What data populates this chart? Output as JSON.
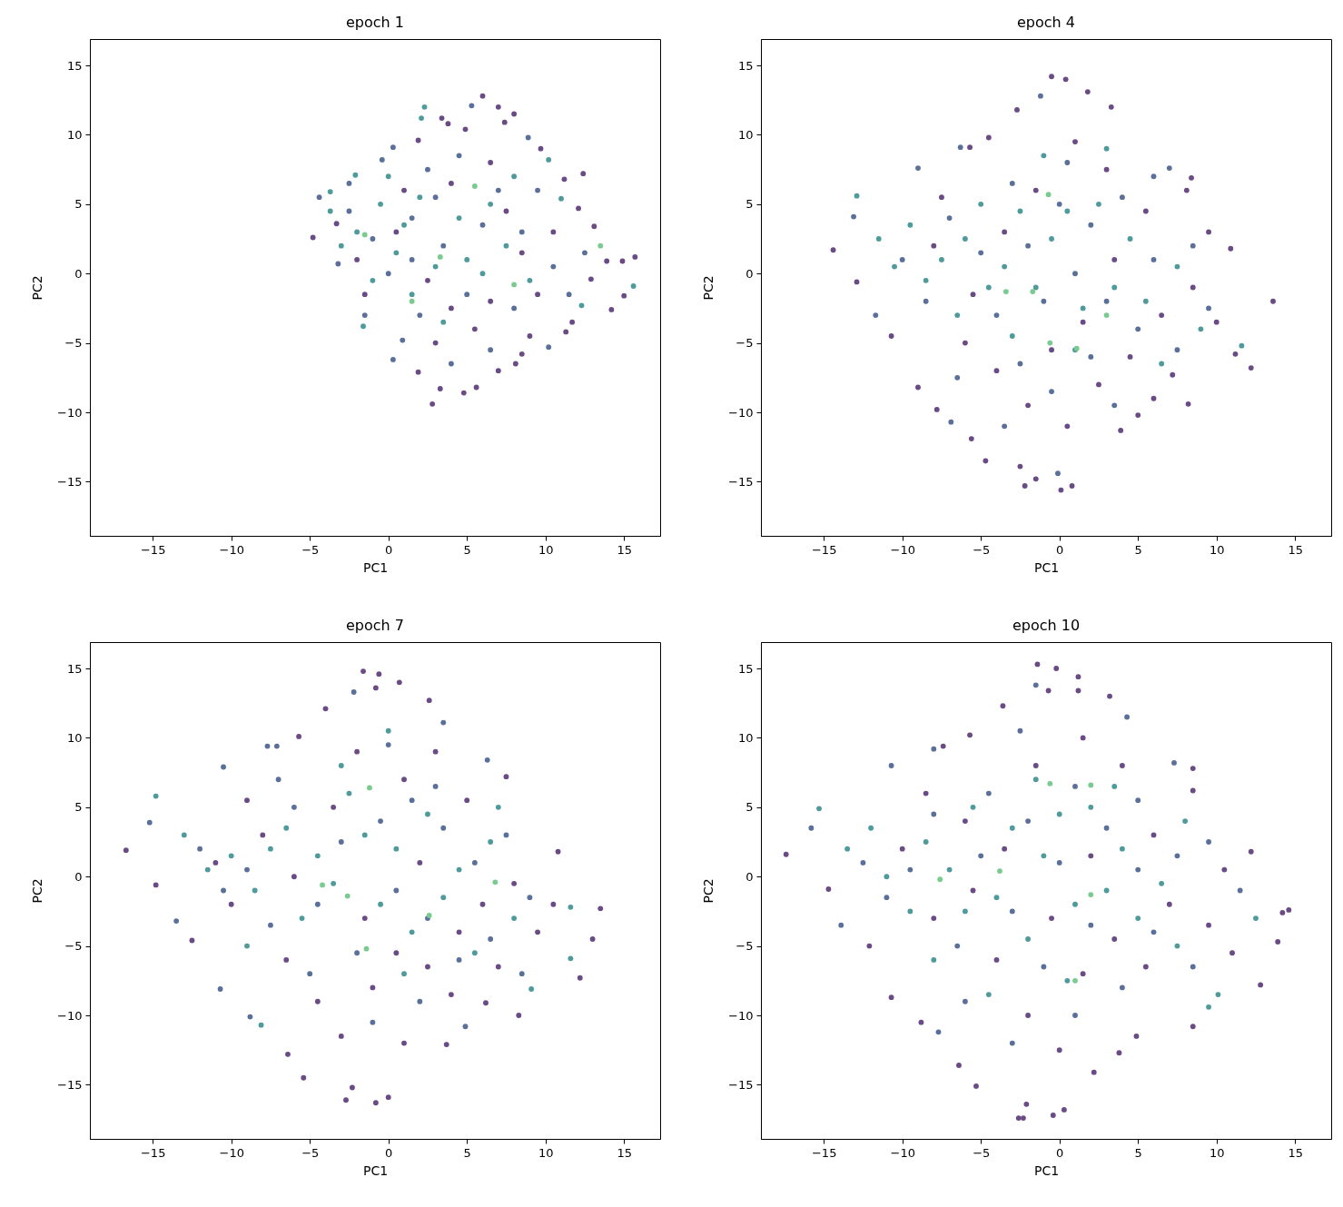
{
  "chart_data": [
    {
      "type": "scatter",
      "title": "epoch 1",
      "xlabel": "PC1",
      "ylabel": "PC2",
      "marker": "circle",
      "xlim": [
        -19.0,
        17.3
      ],
      "ylim": [
        -18.9,
        16.9
      ],
      "xticks": [
        -15,
        -10,
        -5,
        0,
        5,
        10,
        15
      ],
      "yticks": [
        -15,
        -10,
        -5,
        0,
        5,
        10,
        15
      ],
      "series": [
        {
          "color": "#6a4b86",
          "x": [
            -4.8,
            6.0,
            7.0,
            8.0,
            3.4,
            3.8,
            4.9,
            7.4,
            9.7,
            11.2,
            12.1,
            13.1,
            13.9,
            15.7,
            14.9,
            15.0,
            14.2,
            12.9,
            11.7,
            11.3,
            8.5,
            8.1,
            5.6,
            4.8,
            3.3,
            2.8,
            1.9,
            -3.3,
            1.9,
            12.4,
            -1.5,
            0.5,
            2.5,
            4.0,
            6.5,
            7.5,
            8.5,
            9.5,
            5.5,
            3.0,
            6.5,
            1.0,
            -2.0,
            10.5,
            4.0,
            7.0,
            9.0
          ],
          "values": [
            2.6,
            12.8,
            12.0,
            11.5,
            11.2,
            10.8,
            10.4,
            10.9,
            9.0,
            6.8,
            4.7,
            3.4,
            0.9,
            1.2,
            0.9,
            -1.6,
            -2.6,
            -0.4,
            -3.5,
            -4.2,
            -5.8,
            -6.5,
            -8.2,
            -8.6,
            -8.3,
            -9.4,
            -7.1,
            3.6,
            9.6,
            7.2,
            -1.5,
            3.0,
            -0.5,
            6.5,
            -2.0,
            4.5,
            1.5,
            -1.5,
            -4.0,
            -5.0,
            8.0,
            6.0,
            1.0,
            3.0,
            -2.5,
            -7.0,
            -4.5
          ]
        },
        {
          "color": "#5b6f9b",
          "x": [
            5.3,
            -4.4,
            8.9,
            0.3,
            10.2,
            0.9,
            -3.2,
            -0.4,
            0.3,
            -2.5,
            -1.0,
            0.0,
            1.5,
            2.5,
            3.5,
            4.5,
            5.0,
            6.0,
            7.0,
            8.0,
            8.5,
            9.5,
            10.5,
            11.5,
            2.0,
            -1.5,
            3.0,
            1.5,
            6.5,
            4.0,
            -2.5,
            12.5
          ],
          "values": [
            12.1,
            5.5,
            9.8,
            -6.2,
            -5.3,
            -4.8,
            0.7,
            8.2,
            9.1,
            4.5,
            2.5,
            0.0,
            4.0,
            7.5,
            2.0,
            8.5,
            -1.5,
            3.5,
            6.0,
            -2.5,
            3.0,
            6.0,
            0.5,
            -1.5,
            -3.0,
            -3.0,
            5.5,
            1.0,
            -5.5,
            -6.5,
            6.5,
            1.5
          ]
        },
        {
          "color": "#4f9a9b",
          "x": [
            2.3,
            2.1,
            -3.7,
            -3.7,
            -2.1,
            -1.6,
            10.2,
            11.0,
            12.3,
            15.6,
            -2.0,
            -0.5,
            0.5,
            1.0,
            2.0,
            3.0,
            -1.0,
            1.5,
            4.5,
            6.0,
            7.5,
            8.0,
            9.0,
            6.5,
            3.5,
            0.0,
            -3.0,
            5.0
          ],
          "values": [
            12.0,
            11.2,
            4.5,
            5.9,
            7.1,
            -3.8,
            8.2,
            5.4,
            -2.3,
            -0.9,
            3.0,
            5.0,
            1.5,
            3.5,
            5.5,
            0.5,
            -0.5,
            -1.5,
            4.0,
            0.0,
            2.0,
            7.0,
            -0.5,
            5.0,
            -3.5,
            7.0,
            2.0,
            1.0
          ]
        },
        {
          "color": "#7acb8f",
          "x": [
            13.5,
            5.5,
            3.3,
            8.0,
            -1.5,
            1.5
          ],
          "values": [
            2.0,
            6.3,
            1.2,
            -0.8,
            2.8,
            -2.0
          ]
        }
      ]
    },
    {
      "type": "scatter",
      "title": "epoch 4",
      "xlabel": "PC1",
      "ylabel": "PC2",
      "marker": "circle",
      "xlim": [
        -19.0,
        17.3
      ],
      "ylim": [
        -18.9,
        16.9
      ],
      "xticks": [
        -15,
        -10,
        -5,
        0,
        5,
        10,
        15
      ],
      "yticks": [
        -15,
        -10,
        -5,
        0,
        5,
        10,
        15
      ],
      "series": [
        {
          "color": "#6a4b86",
          "x": [
            -14.4,
            -12.9,
            -0.5,
            0.4,
            1.8,
            -2.7,
            3.3,
            8.4,
            10.9,
            13.6,
            12.2,
            11.2,
            0.1,
            0.8,
            -2.2,
            -1.5,
            -2.5,
            -4.7,
            -5.6,
            3.9,
            5.0,
            8.2,
            7.2,
            -7.8,
            -9.0,
            -10.7,
            -5.7,
            -4.5,
            8.1,
            -8.0,
            -6.0,
            -4.0,
            -2.0,
            0.5,
            2.5,
            4.5,
            6.5,
            8.5,
            9.5,
            5.5,
            3.0,
            1.0,
            -1.5,
            -3.5,
            -5.5,
            1.5,
            -0.5,
            3.5,
            -7.5,
            6.0,
            10.0
          ],
          "values": [
            1.7,
            -0.6,
            14.2,
            14.0,
            13.1,
            11.8,
            12.0,
            6.9,
            1.8,
            -2.0,
            -6.8,
            -5.8,
            -15.6,
            -15.3,
            -15.3,
            -14.8,
            -13.9,
            -13.5,
            -11.9,
            -11.3,
            -10.2,
            -9.4,
            -7.3,
            -9.8,
            -8.2,
            -4.5,
            9.1,
            9.8,
            6.0,
            2.0,
            -5.0,
            -7.0,
            -9.5,
            -11.0,
            -8.0,
            -6.0,
            -3.0,
            -1.0,
            3.0,
            4.5,
            7.5,
            9.5,
            6.0,
            3.0,
            -1.5,
            -3.5,
            -5.5,
            1.0,
            5.5,
            -9.0,
            -3.5
          ]
        },
        {
          "color": "#5b6f9b",
          "x": [
            -13.1,
            -1.2,
            7.0,
            -0.1,
            -6.9,
            -11.7,
            -9.0,
            -6.3,
            -10.0,
            -8.5,
            -7.0,
            -5.0,
            -4.0,
            -3.0,
            -2.0,
            -1.0,
            0.0,
            1.0,
            2.0,
            3.0,
            4.0,
            5.0,
            6.0,
            7.5,
            8.5,
            9.5,
            2.0,
            -2.5,
            -6.5,
            0.5,
            3.5,
            -3.5,
            6.0,
            -0.5
          ],
          "values": [
            4.1,
            12.8,
            7.6,
            -14.4,
            -10.7,
            -3.0,
            7.6,
            9.1,
            1.0,
            -2.0,
            4.0,
            1.5,
            -3.0,
            6.5,
            2.0,
            -2.0,
            5.0,
            0.0,
            3.5,
            -2.0,
            5.5,
            -4.0,
            1.0,
            -5.5,
            2.0,
            -2.5,
            -6.0,
            -6.5,
            -7.5,
            8.0,
            -9.5,
            -11.0,
            7.0,
            -8.5
          ]
        },
        {
          "color": "#4f9a9b",
          "x": [
            -12.9,
            11.6,
            -11.5,
            -10.5,
            -9.5,
            -8.5,
            -7.5,
            -6.5,
            -6.0,
            -5.0,
            -4.5,
            -3.5,
            -2.5,
            -1.5,
            -0.5,
            0.5,
            1.5,
            2.5,
            3.5,
            4.5,
            5.5,
            -3.0,
            1.0,
            7.5,
            9.0,
            6.5,
            -1.0,
            3.0
          ],
          "values": [
            5.6,
            -5.2,
            2.5,
            0.5,
            3.5,
            -0.5,
            1.0,
            -3.0,
            2.5,
            5.0,
            -1.0,
            0.5,
            4.5,
            -1.0,
            2.5,
            4.5,
            -2.5,
            5.0,
            -1.0,
            2.5,
            -2.0,
            -4.5,
            -5.5,
            0.5,
            -4.0,
            -6.5,
            8.5,
            9.0
          ]
        },
        {
          "color": "#7acb8f",
          "x": [
            -0.7,
            -3.4,
            -1.7,
            1.1,
            -0.6,
            3.0
          ],
          "values": [
            5.7,
            -1.3,
            -1.3,
            -5.4,
            -5.0,
            -3.0
          ]
        }
      ]
    },
    {
      "type": "scatter",
      "title": "epoch 7",
      "xlabel": "PC1",
      "ylabel": "PC2",
      "marker": "circle",
      "xlim": [
        -19.0,
        17.3
      ],
      "ylim": [
        -18.9,
        16.9
      ],
      "xticks": [
        -15,
        -10,
        -5,
        0,
        5,
        10,
        15
      ],
      "yticks": [
        -15,
        -10,
        -5,
        0,
        5,
        10,
        15
      ],
      "series": [
        {
          "color": "#6a4b86",
          "x": [
            -16.7,
            -14.8,
            -1.6,
            -0.6,
            0.7,
            -0.8,
            2.6,
            -4.0,
            7.5,
            10.8,
            13.5,
            13.0,
            12.2,
            -0.8,
            0.0,
            -2.7,
            -2.3,
            -5.4,
            -6.4,
            -12.5,
            -5.7,
            3.7,
            8.3,
            6.2,
            -10.0,
            -8.0,
            -6.5,
            -4.5,
            -3.0,
            -1.0,
            1.0,
            2.5,
            4.5,
            6.0,
            8.0,
            9.5,
            5.0,
            3.0,
            1.0,
            -2.0,
            -3.5,
            -6.0,
            -1.5,
            0.5,
            2.0,
            7.0,
            -9.0,
            4.0,
            10.5,
            -11.0
          ],
          "values": [
            1.9,
            -0.6,
            14.8,
            14.6,
            14.0,
            13.6,
            12.7,
            12.1,
            7.2,
            1.8,
            -2.3,
            -4.5,
            -7.3,
            -16.3,
            -15.9,
            -16.1,
            -15.2,
            -14.5,
            -12.8,
            -4.6,
            10.1,
            -12.1,
            -10.0,
            -9.1,
            -2.0,
            3.0,
            -6.0,
            -9.0,
            -11.5,
            -8.0,
            -12.0,
            -6.5,
            -4.0,
            -2.0,
            -0.5,
            -4.0,
            5.5,
            9.0,
            7.0,
            9.0,
            5.0,
            0.0,
            -3.0,
            -5.5,
            1.0,
            -6.5,
            5.5,
            -8.5,
            -2.0,
            1.0
          ]
        },
        {
          "color": "#5b6f9b",
          "x": [
            -15.2,
            -2.2,
            3.5,
            6.3,
            -8.8,
            -10.7,
            -13.5,
            -10.5,
            -7.7,
            -7.1,
            4.9,
            -12.0,
            -10.5,
            -9.0,
            -7.5,
            -6.0,
            -4.5,
            -3.0,
            -2.0,
            -0.5,
            0.5,
            1.5,
            2.5,
            3.5,
            4.5,
            5.5,
            6.5,
            7.5,
            9.0,
            0.0,
            -5.0,
            -1.0,
            2.0,
            -7.0,
            8.5,
            3.0
          ],
          "values": [
            3.9,
            13.3,
            11.1,
            8.4,
            -10.1,
            -8.1,
            -3.2,
            7.9,
            9.4,
            9.4,
            -10.8,
            2.0,
            -1.0,
            0.5,
            -3.5,
            5.0,
            -2.0,
            2.5,
            -5.5,
            4.0,
            -1.0,
            5.5,
            -3.0,
            3.5,
            -6.0,
            1.0,
            -4.5,
            3.0,
            -1.5,
            9.5,
            -7.0,
            -10.5,
            -9.0,
            7.0,
            -7.0,
            6.5
          ]
        },
        {
          "color": "#4f9a9b",
          "x": [
            -14.8,
            11.6,
            11.6,
            -8.1,
            9.1,
            -13.0,
            -11.5,
            -10.0,
            -8.5,
            -7.5,
            -6.5,
            -5.5,
            -4.5,
            -3.5,
            -2.5,
            -1.5,
            -0.5,
            0.5,
            1.5,
            2.5,
            3.5,
            4.5,
            5.5,
            -3.0,
            1.0,
            6.5,
            8.0,
            -9.0,
            7.0,
            0.0
          ],
          "values": [
            5.8,
            -5.9,
            -2.2,
            -10.7,
            -8.1,
            3.0,
            0.5,
            1.5,
            -1.0,
            2.0,
            3.5,
            -3.0,
            1.5,
            -0.5,
            6.0,
            3.0,
            -2.0,
            2.0,
            -4.0,
            4.5,
            -1.5,
            0.5,
            -5.5,
            8.0,
            -7.0,
            2.5,
            -3.0,
            -5.0,
            5.0,
            10.5
          ]
        },
        {
          "color": "#7acb8f",
          "x": [
            -1.2,
            -4.2,
            6.8,
            2.6,
            -1.4,
            -2.6
          ],
          "values": [
            6.4,
            -0.6,
            -0.4,
            -2.8,
            -5.2,
            -1.4
          ]
        }
      ]
    },
    {
      "type": "scatter",
      "title": "epoch 10",
      "xlabel": "PC1",
      "ylabel": "PC2",
      "marker": "circle",
      "xlim": [
        -19.0,
        17.3
      ],
      "ylim": [
        -18.9,
        16.9
      ],
      "xticks": [
        -15,
        -10,
        -5,
        0,
        5,
        10,
        15
      ],
      "yticks": [
        -15,
        -10,
        -5,
        0,
        5,
        10,
        15
      ],
      "series": [
        {
          "color": "#6a4b86",
          "x": [
            -17.4,
            -14.7,
            -1.4,
            -0.2,
            1.2,
            -0.7,
            1.2,
            3.2,
            -3.6,
            8.5,
            8.5,
            12.2,
            14.6,
            14.2,
            13.9,
            12.8,
            8.5,
            0.3,
            -0.4,
            -2.6,
            -2.3,
            -2.1,
            -5.3,
            -6.4,
            -8.8,
            -10.7,
            -12.1,
            -7.4,
            -5.7,
            4.9,
            3.8,
            2.2,
            -10.0,
            -8.0,
            -6.0,
            -4.0,
            -2.0,
            0.0,
            1.5,
            3.5,
            5.5,
            7.0,
            9.5,
            10.5,
            6.0,
            4.0,
            1.5,
            -1.5,
            -3.5,
            -5.5,
            -0.5,
            2.0,
            -8.5,
            11.0
          ],
          "values": [
            1.6,
            -0.9,
            15.3,
            15.0,
            14.4,
            13.4,
            13.4,
            13.0,
            12.3,
            7.8,
            6.2,
            1.8,
            -2.4,
            -2.6,
            -4.7,
            -7.8,
            -10.8,
            -16.8,
            -17.2,
            -17.4,
            -17.4,
            -16.4,
            -15.1,
            -13.6,
            -10.5,
            -8.7,
            -5.0,
            9.4,
            10.2,
            -11.5,
            -12.7,
            -14.1,
            2.0,
            -3.0,
            4.0,
            -6.0,
            -10.0,
            -12.5,
            -7.0,
            -4.5,
            -6.5,
            -2.0,
            -3.5,
            0.5,
            3.0,
            8.0,
            10.0,
            8.0,
            2.0,
            -1.0,
            -3.0,
            1.5,
            6.0,
            -5.5
          ]
        },
        {
          "color": "#5b6f9b",
          "x": [
            -15.8,
            -1.5,
            4.3,
            7.3,
            -7.7,
            -13.9,
            -10.7,
            -8.0,
            -12.5,
            -11.0,
            -9.5,
            -8.0,
            -6.5,
            -5.0,
            -4.5,
            -3.0,
            -2.0,
            -1.0,
            0.0,
            1.0,
            2.0,
            3.0,
            4.0,
            5.0,
            6.0,
            7.5,
            8.5,
            9.5,
            -3.0,
            1.0,
            -6.0,
            5.0,
            -2.5,
            11.5
          ],
          "values": [
            3.5,
            13.8,
            11.5,
            8.2,
            -11.2,
            -3.5,
            8.0,
            9.2,
            1.0,
            -1.5,
            0.5,
            4.5,
            -5.0,
            1.5,
            6.0,
            -2.5,
            4.0,
            -6.5,
            1.0,
            6.5,
            -3.5,
            3.5,
            -8.0,
            0.5,
            -4.0,
            1.5,
            -6.5,
            2.5,
            -12.0,
            -10.0,
            -9.0,
            5.5,
            10.5,
            -1.0
          ]
        },
        {
          "color": "#4f9a9b",
          "x": [
            -15.3,
            12.5,
            10.1,
            9.5,
            -13.5,
            -12.0,
            -11.0,
            -9.5,
            -8.5,
            -7.0,
            -6.0,
            -5.5,
            -4.0,
            -3.0,
            -2.0,
            -1.0,
            0.0,
            1.0,
            2.0,
            3.0,
            4.0,
            5.0,
            6.5,
            -1.5,
            0.5,
            7.5,
            -8.0,
            3.5,
            -4.5,
            8.0
          ],
          "values": [
            4.9,
            -3.0,
            -8.5,
            -9.4,
            2.0,
            3.5,
            0.0,
            -2.5,
            2.5,
            0.5,
            -2.5,
            5.0,
            -1.5,
            3.5,
            -4.5,
            1.5,
            4.5,
            -2.0,
            5.0,
            -1.0,
            2.0,
            -3.0,
            -0.5,
            7.0,
            -7.5,
            -5.0,
            -6.0,
            6.5,
            -8.5,
            4.0
          ]
        },
        {
          "color": "#7acb8f",
          "x": [
            -0.6,
            2.0,
            -3.8,
            -7.6,
            2.0,
            1.0
          ],
          "values": [
            6.7,
            6.6,
            0.4,
            -0.2,
            -1.3,
            -7.5
          ]
        }
      ]
    }
  ]
}
